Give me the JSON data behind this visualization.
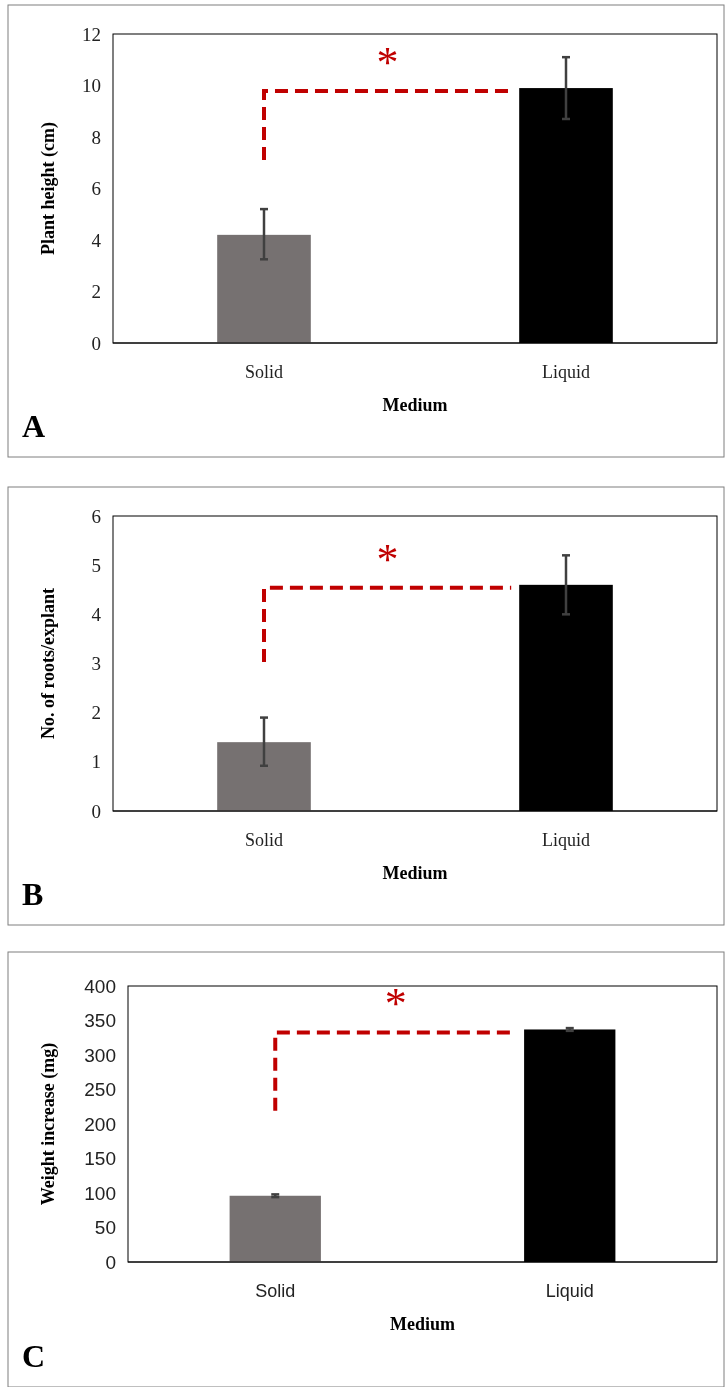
{
  "chart_data": [
    {
      "type": "bar",
      "xlabel": "Medium",
      "ylabel": "Plant height (cm)",
      "categories": [
        "Solid",
        "Liquid"
      ],
      "values": [
        4.2,
        9.9
      ],
      "colors": [
        "#767171",
        "#000000"
      ],
      "errors": [
        [
          3.25,
          5.2
        ],
        [
          8.7,
          11.1
        ]
      ],
      "ylim": [
        0,
        12
      ],
      "yticks": [
        0,
        2,
        4,
        6,
        8,
        10,
        12
      ],
      "grid": false,
      "annotations": [
        "*",
        "A"
      ]
    },
    {
      "type": "bar",
      "xlabel": "Medium",
      "ylabel": "No. of roots/explant",
      "categories": [
        "Solid",
        "Liquid"
      ],
      "values": [
        1.4,
        4.6
      ],
      "colors": [
        "#767171",
        "#000000"
      ],
      "errors": [
        [
          0.92,
          1.9
        ],
        [
          4.0,
          5.2
        ]
      ],
      "ylim": [
        0,
        6
      ],
      "yticks": [
        0,
        1,
        2,
        3,
        4,
        5,
        6
      ],
      "grid": false,
      "annotations": [
        "*",
        "B"
      ]
    },
    {
      "type": "bar",
      "xlabel": "Medium",
      "ylabel": "Weight increase (mg)",
      "categories": [
        "Solid",
        "Liquid"
      ],
      "values": [
        96,
        337
      ],
      "colors": [
        "#767171",
        "#000000"
      ],
      "errors": [
        2,
        2
      ],
      "ylim": [
        0,
        400
      ],
      "yticks": [
        0,
        50,
        100,
        150,
        200,
        250,
        300,
        350,
        400
      ],
      "grid": false,
      "annotations": [
        "*",
        "C"
      ]
    }
  ]
}
